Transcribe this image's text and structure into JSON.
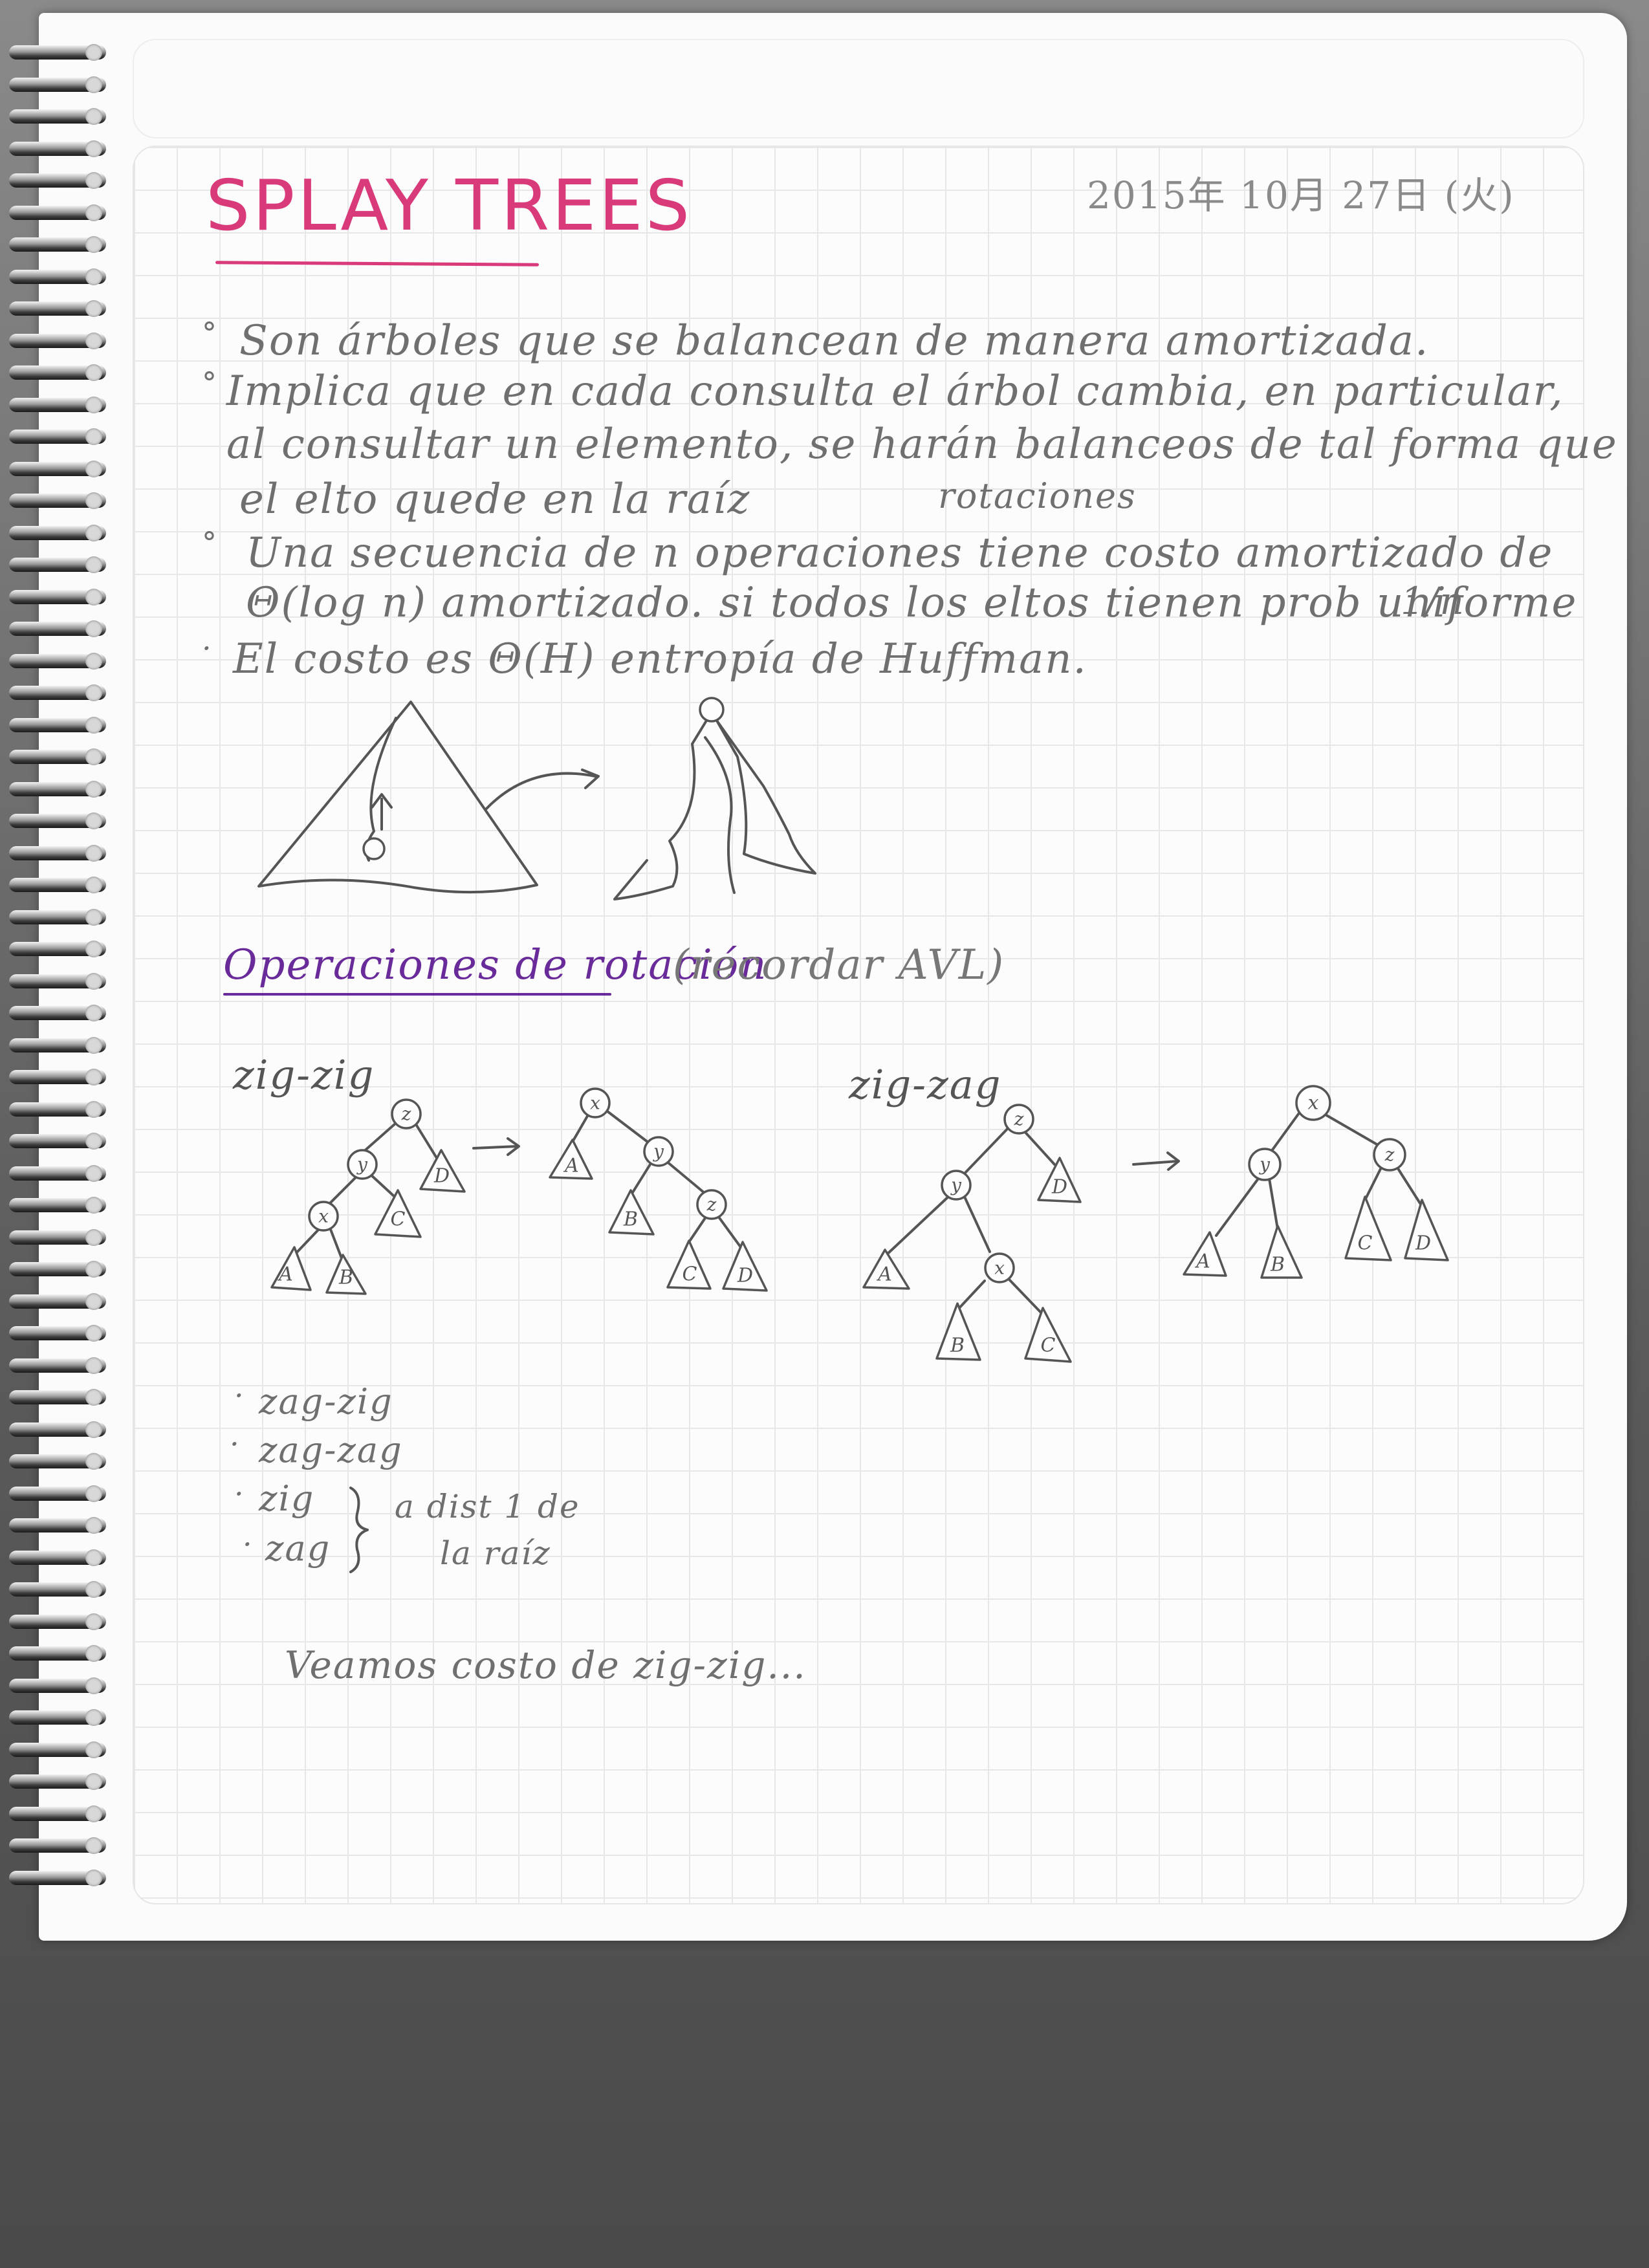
{
  "header": {
    "title": "SPLAY TREES",
    "date": "2015年 10月 27日 (火)"
  },
  "bullets": [
    {
      "marker": "°",
      "lines": [
        "Son árboles que se balancean de manera amortizada."
      ]
    },
    {
      "marker": "°",
      "lines": [
        "Implica que en cada consulta el árbol cambia, en particular,",
        "al consultar un elemento, se harán balanceos de tal forma que",
        "el elto quede en la raíz"
      ],
      "annotation": "rotaciones"
    },
    {
      "marker": "°",
      "lines": [
        "Una secuencia de n operaciones tiene costo amortizado de",
        "Θ(log n) amortizado. si todos los eltos tienen prob uniforme"
      ],
      "annotation": "1/n"
    },
    {
      "marker": "·",
      "lines": [
        "El costo es Θ(H) entropía de Huffman."
      ]
    }
  ],
  "rotations": {
    "heading": "Operaciones de rotación",
    "note": "(recordar AVL)",
    "zigzig": {
      "label": "zig-zig",
      "before": {
        "nodes": [
          "z",
          "y",
          "x"
        ],
        "leaves": [
          "A",
          "B",
          "C",
          "D"
        ]
      },
      "after": {
        "nodes": [
          "x",
          "y",
          "z"
        ],
        "leaves": [
          "A",
          "B",
          "C",
          "D"
        ]
      }
    },
    "zigzag": {
      "label": "zig-zag",
      "before": {
        "nodes": [
          "z",
          "y",
          "x"
        ],
        "leaves": [
          "A",
          "B",
          "C",
          "D"
        ]
      },
      "after": {
        "nodes": [
          "x",
          "y",
          "z"
        ],
        "leaves": [
          "A",
          "B",
          "C",
          "D"
        ]
      }
    },
    "arrow": "→"
  },
  "other_cases": [
    {
      "marker": "·",
      "text": "zag-zig"
    },
    {
      "marker": "·",
      "text": "zag-zag"
    },
    {
      "marker": "·",
      "text": "zig"
    },
    {
      "marker": "·",
      "text": "zag"
    }
  ],
  "other_cases_note": [
    "a dist 1 de",
    "la raíz"
  ],
  "footer_note": "Veamos costo de zig-zig..."
}
